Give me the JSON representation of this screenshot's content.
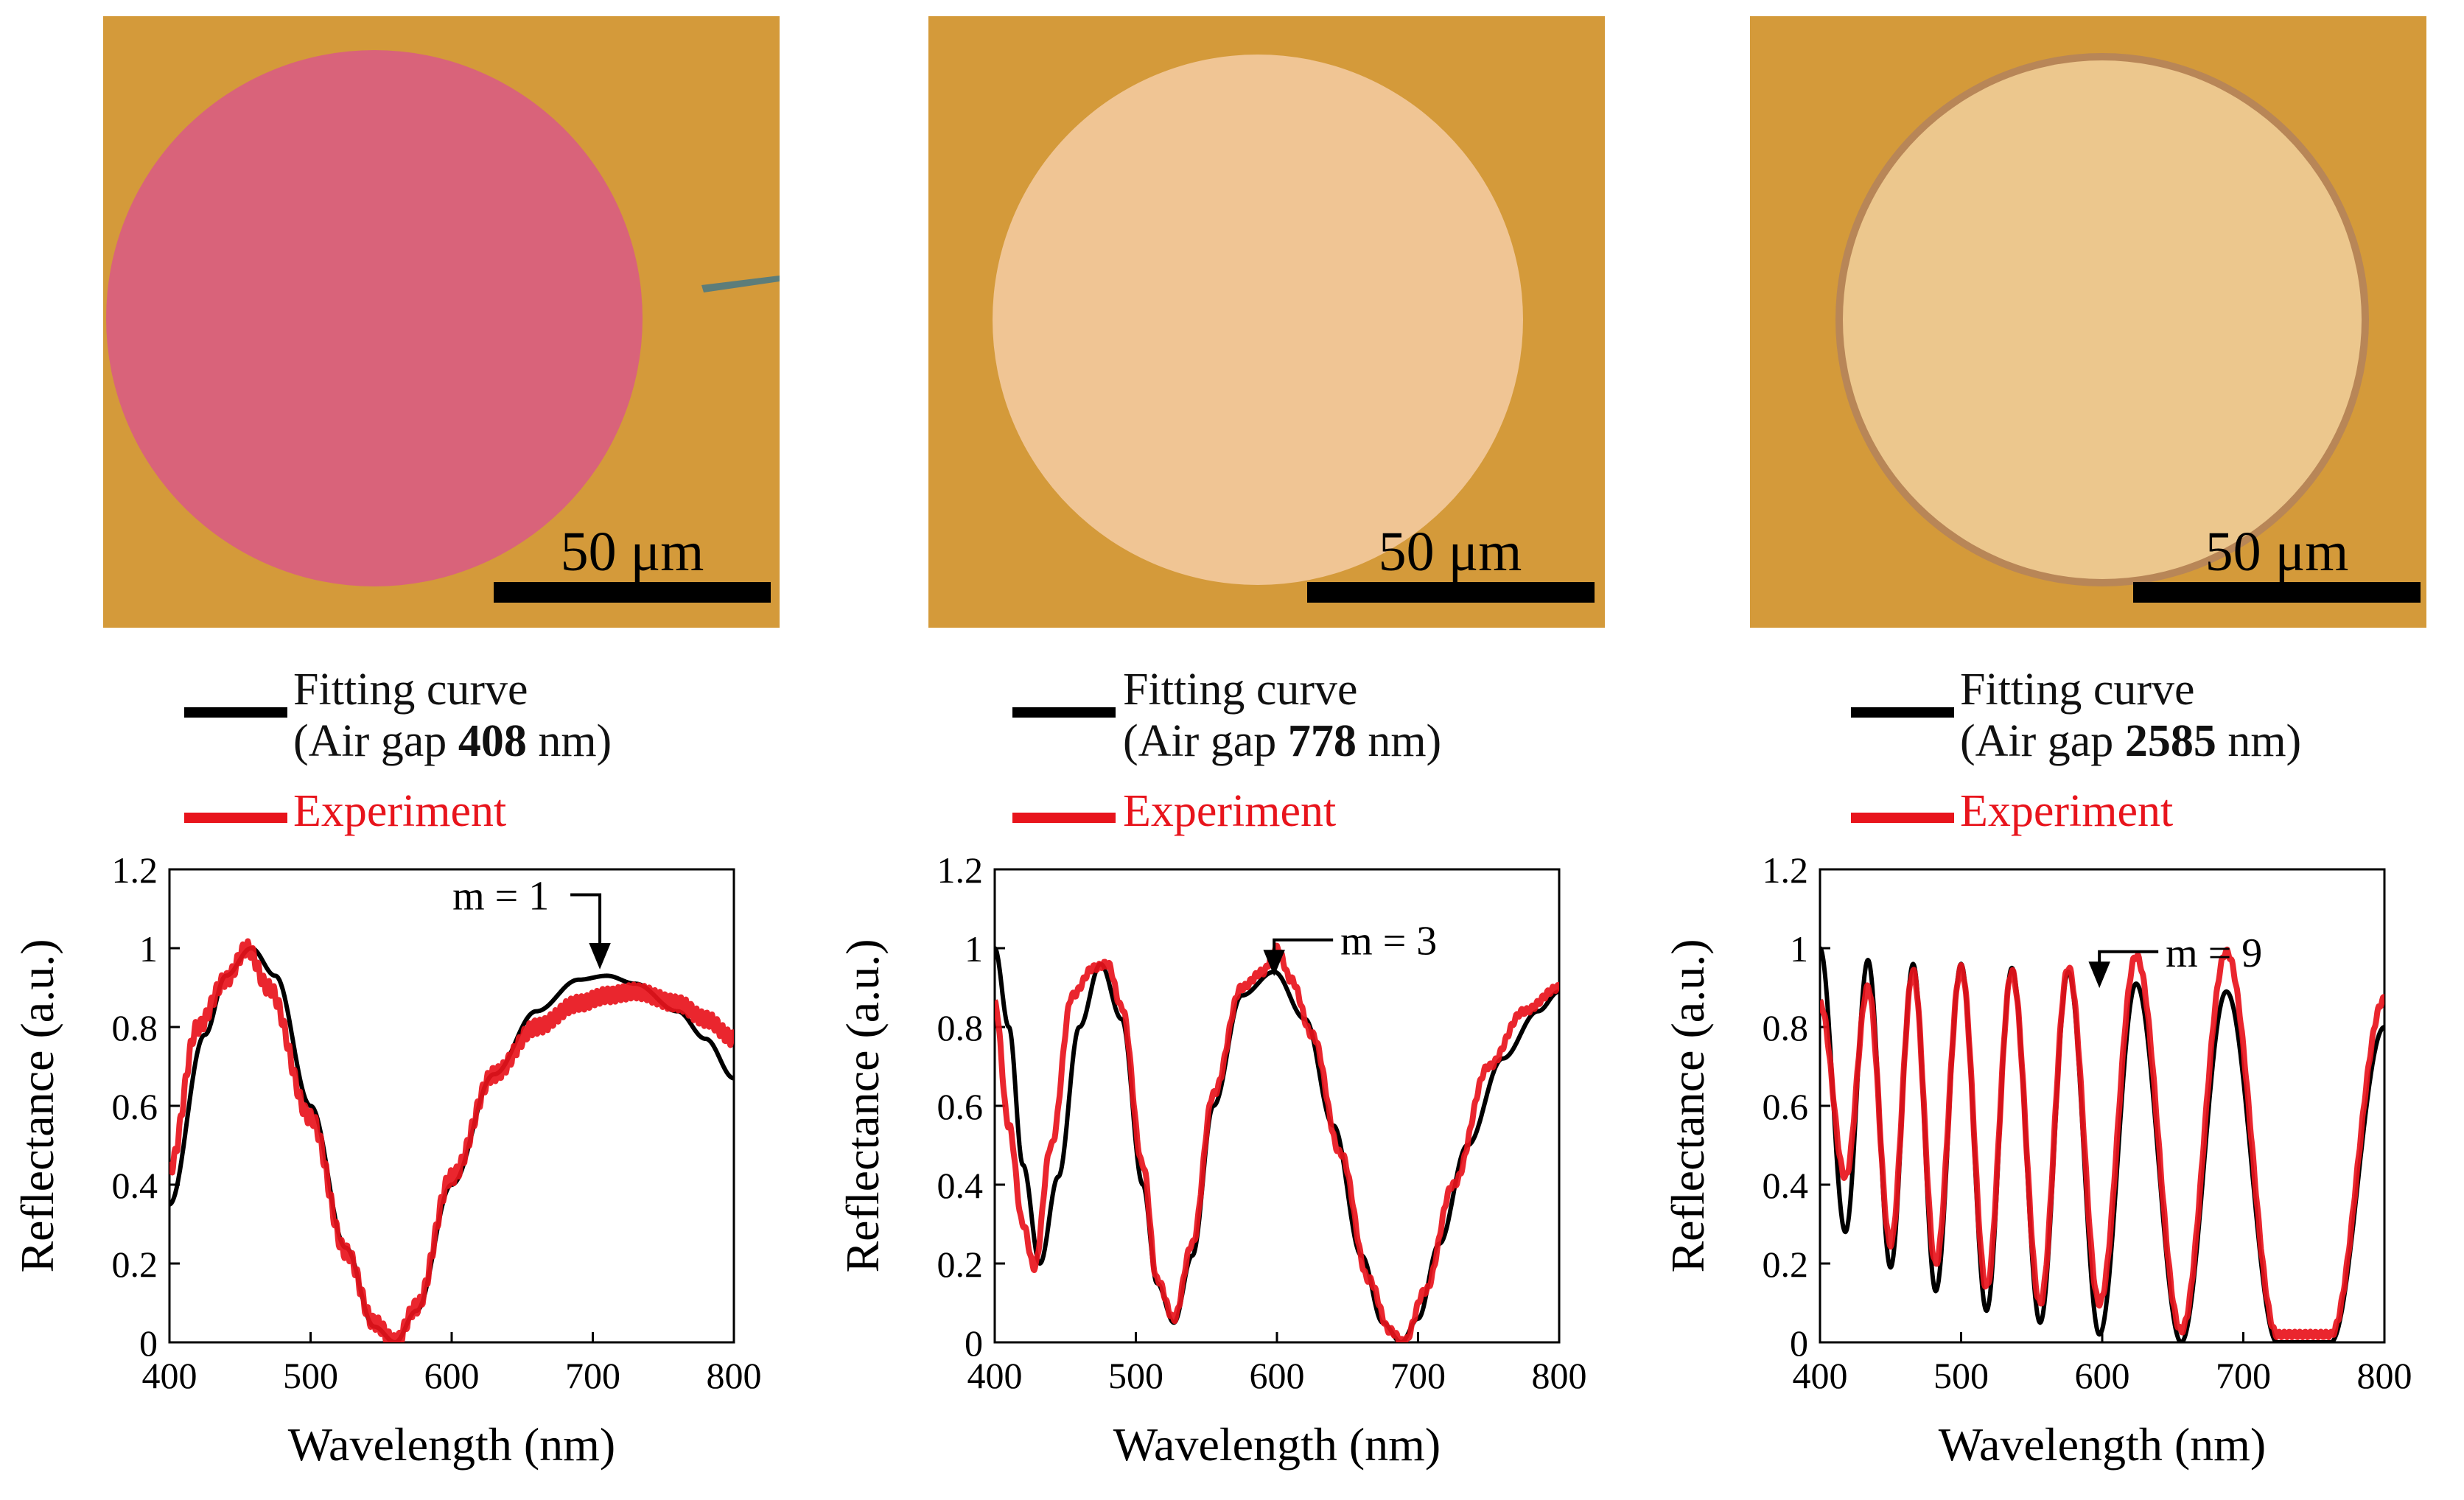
{
  "colors": {
    "background_gold": "#d49a3a",
    "pad_pink": "#d9637a",
    "pad_cream_1": "#f0c594",
    "pad_cream_2": "#ecc78d",
    "fit_line": "#000000",
    "experiment_line": "#e8141c"
  },
  "panels": [
    {
      "scale_bar_label": "50 μm",
      "legend": {
        "fit_line1": "Fitting curve",
        "fit_prefix": "(Air gap ",
        "air_gap": "408",
        "fit_suffix": " nm)",
        "experiment": "Experiment"
      },
      "annotation": "m = 1"
    },
    {
      "scale_bar_label": "50 μm",
      "legend": {
        "fit_line1": "Fitting curve",
        "fit_prefix": "(Air gap ",
        "air_gap": "778",
        "fit_suffix": " nm)",
        "experiment": "Experiment"
      },
      "annotation": "m = 3"
    },
    {
      "scale_bar_label": "50 μm",
      "legend": {
        "fit_line1": "Fitting curve",
        "fit_prefix": "(Air gap ",
        "air_gap": "2585",
        "fit_suffix": " nm)",
        "experiment": "Experiment"
      },
      "annotation": "m = 9"
    }
  ],
  "chart_data": [
    {
      "type": "line",
      "xlabel": "Wavelength (nm)",
      "ylabel": "Reflectance (a.u.)",
      "xlim": [
        400,
        800
      ],
      "ylim": [
        0,
        1.2
      ],
      "xticks": [
        "400",
        "500",
        "600",
        "700",
        "800"
      ],
      "yticks": [
        "0",
        "0.2",
        "0.4",
        "0.6",
        "0.8",
        "1",
        "1.2"
      ],
      "annotation": {
        "text": "m = 1",
        "x": 705,
        "y": 0.93
      },
      "series": [
        {
          "name": "Fitting curve (Air gap 408 nm)",
          "x": [
            400,
            425,
            440,
            458,
            475,
            500,
            525,
            545,
            560,
            575,
            600,
            630,
            660,
            690,
            710,
            730,
            760,
            780,
            800
          ],
          "y": [
            0.35,
            0.78,
            0.93,
            1.0,
            0.93,
            0.6,
            0.24,
            0.04,
            0.0,
            0.08,
            0.4,
            0.68,
            0.84,
            0.92,
            0.93,
            0.91,
            0.84,
            0.77,
            0.67
          ]
        },
        {
          "name": "Experiment",
          "x": [
            400,
            420,
            440,
            455,
            470,
            500,
            525,
            545,
            560,
            575,
            600,
            630,
            660,
            690,
            710,
            730,
            760,
            780,
            800
          ],
          "y": [
            0.44,
            0.8,
            0.92,
            1.0,
            0.9,
            0.57,
            0.23,
            0.05,
            0.0,
            0.09,
            0.42,
            0.68,
            0.8,
            0.86,
            0.88,
            0.89,
            0.86,
            0.82,
            0.77
          ]
        }
      ]
    },
    {
      "type": "line",
      "xlabel": "Wavelength (nm)",
      "ylabel": "Reflectance (a.u.)",
      "xlim": [
        400,
        800
      ],
      "ylim": [
        0,
        1.2
      ],
      "xticks": [
        "400",
        "500",
        "600",
        "700",
        "800"
      ],
      "yticks": [
        "0",
        "0.2",
        "0.4",
        "0.6",
        "0.8",
        "1",
        "1.2"
      ],
      "annotation": {
        "text": "m = 3",
        "x": 598,
        "y": 0.98
      },
      "series": [
        {
          "name": "Fitting curve (Air gap 778 nm)",
          "x": [
            400,
            410,
            420,
            432,
            445,
            460,
            475,
            490,
            505,
            515,
            527,
            540,
            555,
            575,
            598,
            620,
            640,
            660,
            675,
            688,
            700,
            715,
            735,
            760,
            785,
            800
          ],
          "y": [
            1.0,
            0.8,
            0.45,
            0.2,
            0.42,
            0.8,
            0.96,
            0.82,
            0.4,
            0.15,
            0.05,
            0.22,
            0.6,
            0.88,
            0.94,
            0.82,
            0.55,
            0.22,
            0.05,
            0.0,
            0.06,
            0.25,
            0.5,
            0.72,
            0.84,
            0.89
          ]
        },
        {
          "name": "Experiment",
          "x": [
            400,
            410,
            420,
            428,
            440,
            455,
            470,
            480,
            490,
            505,
            515,
            527,
            540,
            555,
            575,
            590,
            600,
            610,
            625,
            645,
            665,
            680,
            690,
            705,
            725,
            750,
            775,
            800
          ],
          "y": [
            0.86,
            0.55,
            0.3,
            0.19,
            0.5,
            0.88,
            0.95,
            0.96,
            0.85,
            0.45,
            0.16,
            0.06,
            0.25,
            0.63,
            0.9,
            0.94,
            1.0,
            0.92,
            0.78,
            0.48,
            0.16,
            0.03,
            0.0,
            0.13,
            0.4,
            0.7,
            0.84,
            0.9
          ]
        }
      ]
    },
    {
      "type": "line",
      "xlabel": "Wavelength (nm)",
      "ylabel": "Reflectance (a.u.)",
      "xlim": [
        400,
        800
      ],
      "ylim": [
        0,
        1.2
      ],
      "xticks": [
        "400",
        "500",
        "600",
        "700",
        "800"
      ],
      "yticks": [
        "0",
        "0.2",
        "0.4",
        "0.6",
        "0.8",
        "1",
        "1.2"
      ],
      "annotation": {
        "text": "m = 9",
        "x": 598,
        "y": 0.95
      },
      "series": [
        {
          "name": "Fitting curve (Air gap 2585 nm)",
          "peaks_x": [
            400,
            418,
            434,
            450,
            466,
            482,
            500,
            518,
            536,
            556,
            576,
            598,
            624,
            656,
            688,
            724,
            762,
            800
          ],
          "peaks_y": [
            1.0,
            0.28,
            0.97,
            0.19,
            0.96,
            0.13,
            0.96,
            0.08,
            0.95,
            0.05,
            0.94,
            0.02,
            0.91,
            0.0,
            0.89,
            0.0,
            0.0,
            0.8
          ]
        },
        {
          "name": "Experiment",
          "peaks_x": [
            400,
            418,
            434,
            450,
            466,
            482,
            500,
            518,
            536,
            556,
            576,
            598,
            624,
            656,
            688,
            724,
            762,
            800
          ],
          "peaks_y": [
            0.86,
            0.42,
            0.9,
            0.25,
            0.94,
            0.2,
            0.95,
            0.14,
            0.94,
            0.1,
            0.95,
            0.1,
            0.98,
            0.03,
            0.99,
            0.02,
            0.02,
            0.87
          ]
        }
      ]
    }
  ]
}
